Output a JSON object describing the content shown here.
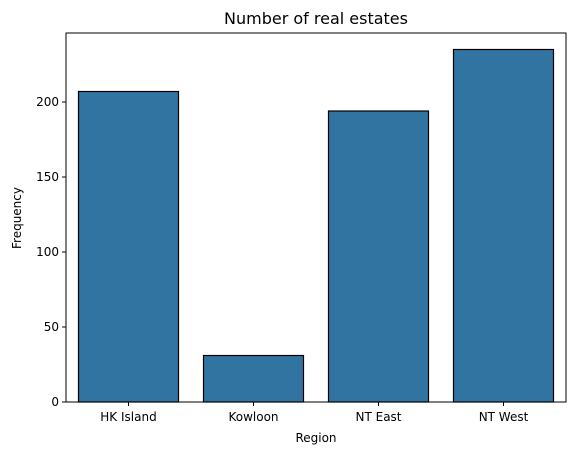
{
  "chart_data": {
    "type": "bar",
    "title": "Number of real estates",
    "xlabel": "Region",
    "ylabel": "Frequency",
    "categories": [
      "HK Island",
      "Kowloon",
      "NT East",
      "NT West"
    ],
    "values": [
      207,
      31,
      194,
      235
    ],
    "ylim": [
      0,
      246
    ],
    "yticks": [
      0,
      50,
      100,
      150,
      200
    ],
    "bar_color": "#3274a1",
    "edge_color": "#000000",
    "grid": false
  }
}
